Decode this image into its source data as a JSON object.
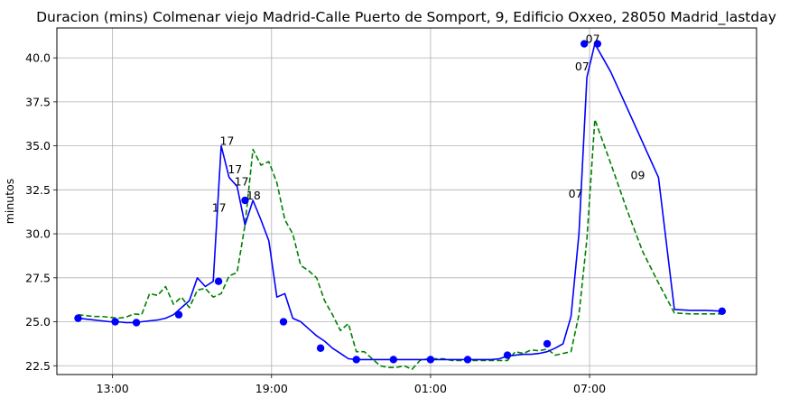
{
  "chart_data": {
    "type": "line",
    "title": "Duracion (mins) Colmenar viejo Madrid-Calle Puerto de Somport, 9, Edificio Oxxeo, 28050 Madrid_lastday",
    "xlabel": "",
    "ylabel": "minutos",
    "xlim": [
      10.9,
      37.3
    ],
    "ylim": [
      22.0,
      41.7
    ],
    "grid": true,
    "x_ticks": [
      {
        "value": 13,
        "label": "13:00"
      },
      {
        "value": 19,
        "label": "19:00"
      },
      {
        "value": 25,
        "label": "01:00"
      },
      {
        "value": 31,
        "label": "07:00"
      }
    ],
    "y_ticks": [
      {
        "value": 22.5,
        "label": "22.5"
      },
      {
        "value": 25.0,
        "label": "25.0"
      },
      {
        "value": 27.5,
        "label": "27.5"
      },
      {
        "value": 30.0,
        "label": "30.0"
      },
      {
        "value": 32.5,
        "label": "32.5"
      },
      {
        "value": 35.0,
        "label": "35.0"
      },
      {
        "value": 37.5,
        "label": "37.5"
      },
      {
        "value": 40.0,
        "label": "40.0"
      }
    ],
    "series": [
      {
        "style": "solid",
        "color": "#0000ff",
        "x": [
          11.7,
          12.0,
          12.3,
          12.6,
          12.9,
          13.2,
          13.5,
          13.8,
          14.1,
          14.4,
          14.7,
          15.0,
          15.3,
          15.6,
          15.9,
          16.2,
          16.5,
          16.8,
          17.1,
          17.4,
          17.7,
          18.0,
          18.3,
          18.6,
          18.9,
          19.2,
          19.5,
          19.8,
          20.1,
          20.4,
          20.7,
          21.0,
          21.3,
          21.6,
          21.9,
          22.2,
          22.5,
          22.8,
          23.1,
          23.4,
          23.7,
          24.0,
          24.3,
          24.6,
          24.9,
          25.2,
          25.5,
          25.8,
          26.1,
          26.4,
          26.7,
          27.0,
          27.3,
          27.6,
          27.9,
          28.2,
          28.5,
          28.8,
          29.1,
          29.4,
          29.7,
          30.0,
          30.3,
          30.6,
          30.9,
          31.2,
          31.8,
          32.4,
          33.0,
          33.6,
          34.2,
          34.8,
          35.4,
          36.0
        ],
        "values": [
          25.2,
          25.15,
          25.1,
          25.05,
          25.0,
          25.0,
          24.95,
          24.95,
          25.0,
          25.05,
          25.1,
          25.2,
          25.4,
          25.8,
          26.2,
          27.5,
          27.0,
          27.3,
          35.0,
          33.2,
          32.7,
          30.5,
          31.9,
          30.8,
          29.6,
          26.4,
          26.6,
          25.2,
          25.0,
          24.6,
          24.2,
          23.9,
          23.5,
          23.2,
          22.9,
          22.85,
          22.85,
          22.85,
          22.85,
          22.85,
          22.85,
          22.85,
          22.85,
          22.85,
          22.85,
          22.85,
          22.85,
          22.85,
          22.85,
          22.85,
          22.85,
          22.85,
          22.85,
          22.9,
          23.05,
          23.1,
          23.15,
          23.15,
          23.2,
          23.3,
          23.5,
          23.75,
          25.3,
          30.0,
          38.9,
          40.8,
          39.2,
          37.2,
          35.2,
          33.2,
          25.7,
          25.65,
          25.65,
          25.6
        ],
        "markers_x": [
          11.7,
          13.1,
          13.9,
          15.5,
          17.0,
          18.0,
          19.45,
          20.85,
          22.2,
          23.6,
          25.0,
          26.4,
          27.9,
          29.4,
          30.8,
          31.3,
          36.0
        ],
        "markers_y": [
          25.2,
          25.0,
          24.95,
          25.4,
          27.3,
          31.9,
          25.0,
          23.5,
          22.85,
          22.85,
          22.85,
          22.85,
          23.1,
          23.75,
          40.8,
          40.8,
          25.6
        ]
      },
      {
        "style": "dashed",
        "color": "#008000",
        "x": [
          11.7,
          12.0,
          12.3,
          12.6,
          12.9,
          13.2,
          13.5,
          13.8,
          14.1,
          14.4,
          14.7,
          15.0,
          15.3,
          15.6,
          15.9,
          16.2,
          16.5,
          16.8,
          17.1,
          17.4,
          17.7,
          18.0,
          18.3,
          18.6,
          18.9,
          19.2,
          19.5,
          19.8,
          20.1,
          20.4,
          20.7,
          21.0,
          21.3,
          21.6,
          21.9,
          22.2,
          22.5,
          22.8,
          23.1,
          23.4,
          23.7,
          24.0,
          24.3,
          24.6,
          24.9,
          25.2,
          25.5,
          25.8,
          26.1,
          26.4,
          26.7,
          27.0,
          27.3,
          27.6,
          27.9,
          28.2,
          28.5,
          28.8,
          29.1,
          29.4,
          29.7,
          30.0,
          30.3,
          30.6,
          30.9,
          31.2,
          31.8,
          32.4,
          33.0,
          33.6,
          34.2,
          34.8,
          35.4,
          36.0
        ],
        "values": [
          25.4,
          25.35,
          25.3,
          25.3,
          25.25,
          25.2,
          25.25,
          25.45,
          25.4,
          26.6,
          26.5,
          27.0,
          26.0,
          26.4,
          25.8,
          26.8,
          26.9,
          26.4,
          26.6,
          27.6,
          27.8,
          30.5,
          34.8,
          33.9,
          34.1,
          32.9,
          30.8,
          30.0,
          28.2,
          27.9,
          27.5,
          26.2,
          25.4,
          24.5,
          24.9,
          23.3,
          23.3,
          22.9,
          22.5,
          22.4,
          22.4,
          22.5,
          22.3,
          22.8,
          22.9,
          22.9,
          22.9,
          22.8,
          22.8,
          22.8,
          22.8,
          22.8,
          22.8,
          22.8,
          22.8,
          23.3,
          23.2,
          23.4,
          23.35,
          23.45,
          23.1,
          23.2,
          23.3,
          25.4,
          29.7,
          36.5,
          34.0,
          31.4,
          29.0,
          27.2,
          25.5,
          25.45,
          25.45,
          25.45
        ]
      }
    ],
    "annotations": [
      {
        "x": 17.05,
        "y": 35.05,
        "text": "17"
      },
      {
        "x": 17.35,
        "y": 33.45,
        "text": "17"
      },
      {
        "x": 17.6,
        "y": 32.75,
        "text": "17"
      },
      {
        "x": 16.75,
        "y": 31.25,
        "text": "17"
      },
      {
        "x": 18.05,
        "y": 31.95,
        "text": "18"
      },
      {
        "x": 30.85,
        "y": 40.85,
        "text": "07"
      },
      {
        "x": 30.45,
        "y": 39.3,
        "text": "07"
      },
      {
        "x": 30.2,
        "y": 32.05,
        "text": "07"
      },
      {
        "x": 32.55,
        "y": 33.1,
        "text": "09"
      }
    ]
  }
}
